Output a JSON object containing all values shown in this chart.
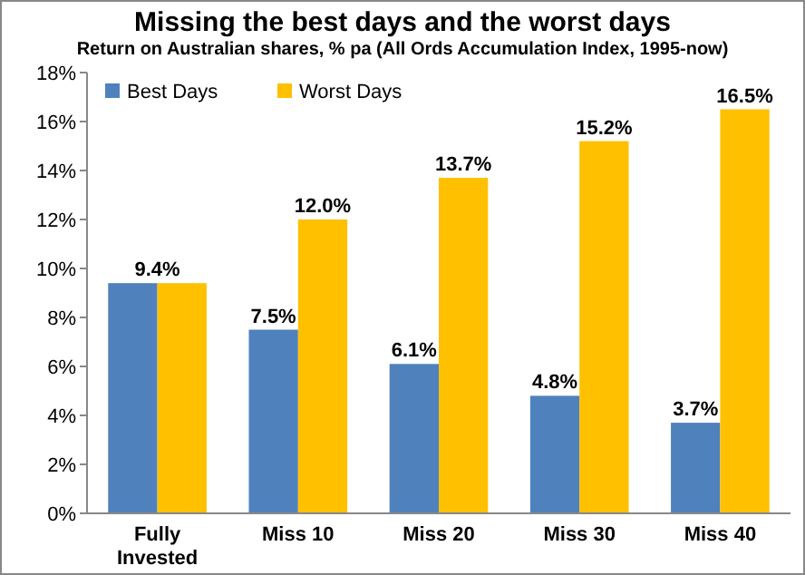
{
  "chart_data": {
    "type": "bar",
    "title": "Missing the best days and the worst days",
    "subtitle": "Return on Australian shares, % pa (All Ords Accumulation Index, 1995-now)",
    "categories": [
      "Fully Invested",
      "Miss 10",
      "Miss 20",
      "Miss 30",
      "Miss 40"
    ],
    "series": [
      {
        "name": "Best Days",
        "color": "#4f81bd",
        "values": [
          9.4,
          7.5,
          6.1,
          4.8,
          3.7
        ],
        "value_labels": [
          "9.4%",
          "7.5%",
          "6.1%",
          "4.8%",
          "3.7%"
        ]
      },
      {
        "name": "Worst Days",
        "color": "#ffc000",
        "values": [
          9.4,
          12.0,
          13.7,
          15.2,
          16.5
        ],
        "value_labels": [
          null,
          "12.0%",
          "13.7%",
          "15.2%",
          "16.5%"
        ]
      }
    ],
    "ylim": [
      0,
      18
    ],
    "yticks": [
      {
        "value": 0,
        "label": "0%"
      },
      {
        "value": 2,
        "label": "2%"
      },
      {
        "value": 4,
        "label": "4%"
      },
      {
        "value": 6,
        "label": "6%"
      },
      {
        "value": 8,
        "label": "8%"
      },
      {
        "value": 10,
        "label": "10%"
      },
      {
        "value": 12,
        "label": "12%"
      },
      {
        "value": 14,
        "label": "14%"
      },
      {
        "value": 16,
        "label": "16%"
      },
      {
        "value": 18,
        "label": "18%"
      }
    ],
    "grid": false,
    "legend": "top left"
  }
}
